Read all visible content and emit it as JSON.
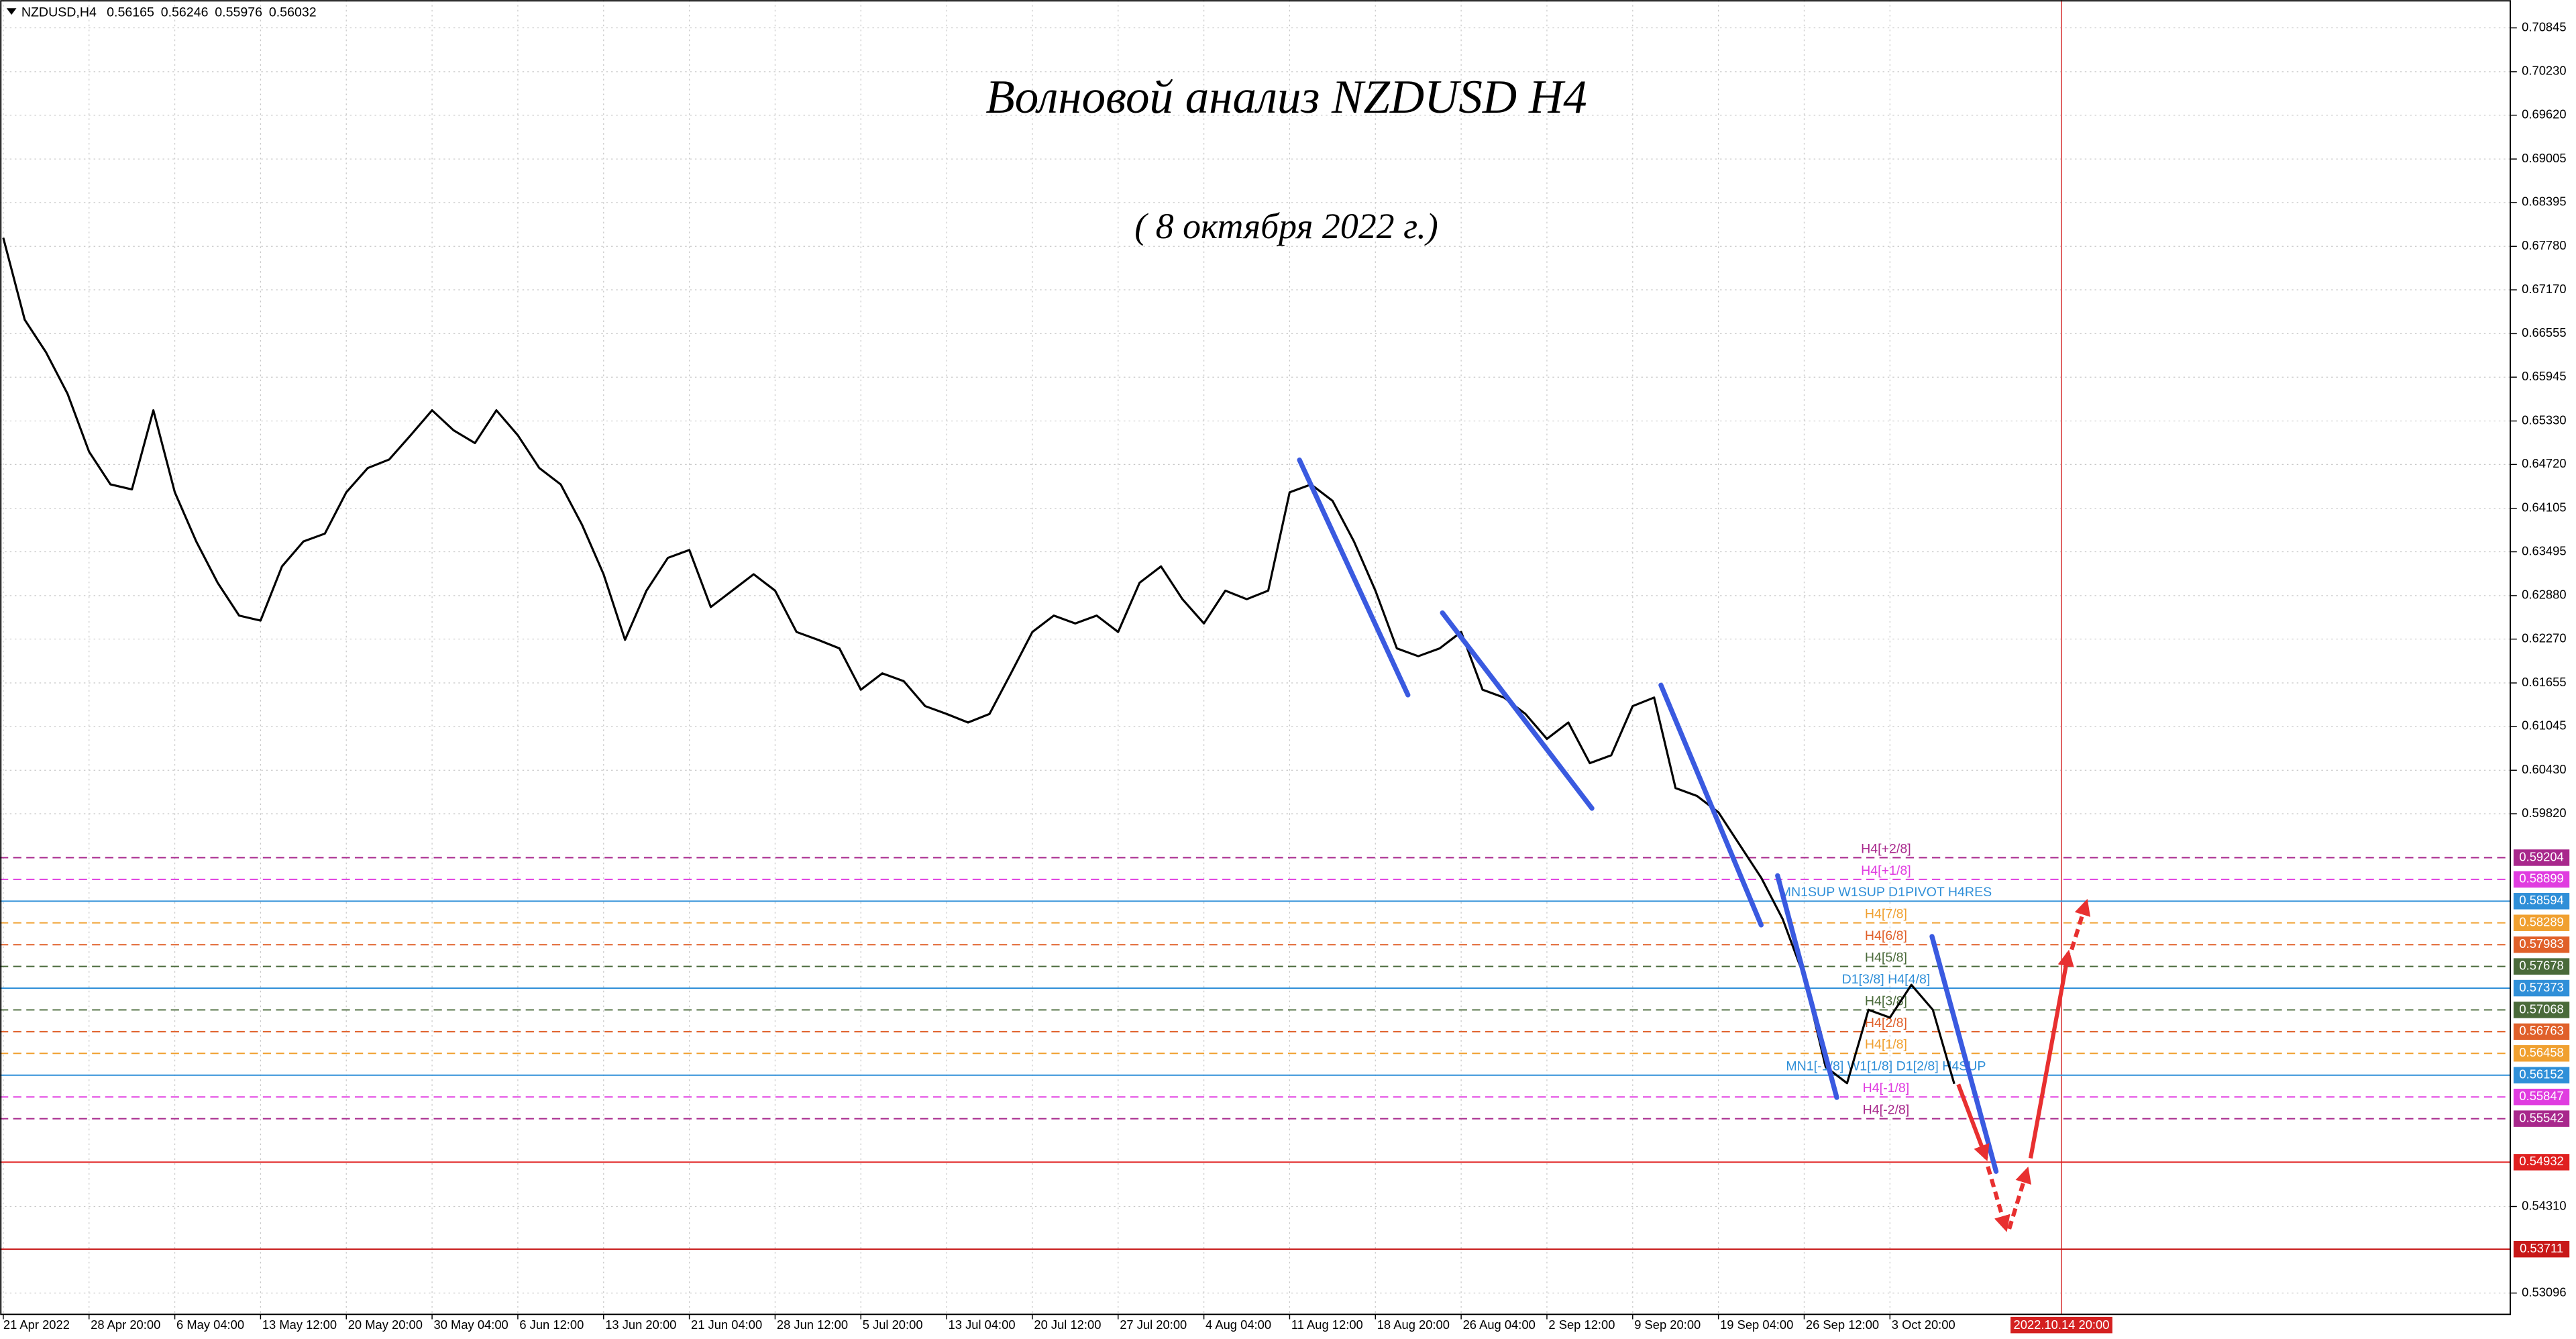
{
  "chart_data": {
    "type": "line",
    "title": "Волновой анализ NZDUSD H4",
    "subtitle": "( 8 октября 2022 г.)",
    "header": {
      "symbol": "NZDUSD,H4",
      "prices": [
        0.56165,
        0.56246,
        0.55976,
        0.56032
      ]
    },
    "categories": [
      "21 Apr 2022",
      null,
      null,
      null,
      "28 Apr 20:00",
      null,
      null,
      null,
      "6 May 04:00",
      null,
      null,
      null,
      "13 May 12:00",
      null,
      null,
      null,
      "20 May 20:00",
      null,
      null,
      null,
      "30 May 04:00",
      null,
      null,
      null,
      "6 Jun 12:00",
      null,
      null,
      null,
      "13 Jun 20:00",
      null,
      null,
      null,
      "21 Jun 04:00",
      null,
      null,
      null,
      "28 Jun 12:00",
      null,
      null,
      null,
      "5 Jul 20:00",
      null,
      null,
      null,
      "13 Jul 04:00",
      null,
      null,
      null,
      "20 Jul 12:00",
      null,
      null,
      null,
      "27 Jul 20:00",
      null,
      null,
      null,
      "4 Aug 04:00",
      null,
      null,
      null,
      "11 Aug 12:00",
      null,
      null,
      null,
      "18 Aug 20:00",
      null,
      null,
      null,
      "26 Aug 04:00",
      null,
      null,
      null,
      "2 Sep 12:00",
      null,
      null,
      null,
      "9 Sep 20:00",
      null,
      null,
      null,
      "19 Sep 04:00",
      null,
      null,
      null,
      "26 Sep 12:00",
      null,
      null,
      null,
      "3 Oct 20:00",
      null,
      null,
      null,
      null,
      null,
      null,
      null,
      "2022.10.14 20:00",
      null,
      null,
      null,
      null,
      null,
      null,
      null,
      null,
      null,
      null,
      null,
      null,
      null,
      null,
      null,
      null,
      null,
      null,
      null,
      null
    ],
    "series": [
      {
        "name": "NZDUSD",
        "color": "#000000",
        "values": [
          0.679,
          0.6675,
          0.6629,
          0.6571,
          0.649,
          0.6444,
          0.6437,
          0.6548,
          0.6433,
          0.6364,
          0.6306,
          0.626,
          0.6253,
          0.6329,
          0.6364,
          0.6375,
          0.6433,
          0.6467,
          0.6479,
          0.6513,
          0.6548,
          0.652,
          0.6502,
          0.6548,
          0.6513,
          0.6467,
          0.6444,
          0.6387,
          0.6318,
          0.6226,
          0.6295,
          0.6341,
          0.6352,
          0.6272,
          0.6295,
          0.6318,
          0.6295,
          0.6237,
          0.6226,
          0.6214,
          0.6156,
          0.6179,
          0.6168,
          0.6133,
          0.6122,
          0.611,
          0.6122,
          0.6179,
          0.6237,
          0.626,
          0.6249,
          0.626,
          0.6237,
          0.6306,
          0.6329,
          0.6283,
          0.6249,
          0.6295,
          0.6283,
          0.6295,
          0.6433,
          0.6444,
          0.6421,
          0.6364,
          0.6295,
          0.6214,
          0.6203,
          0.6214,
          0.6237,
          0.6156,
          0.6145,
          0.6122,
          0.6087,
          0.611,
          0.6053,
          0.6064,
          0.6133,
          0.6145,
          0.6018,
          0.6007,
          0.5984,
          0.5938,
          0.5892,
          0.5834,
          0.5753,
          0.5627,
          0.5604,
          0.5707,
          0.5696,
          0.5742,
          0.5707,
          0.5603,
          null,
          null,
          null,
          null,
          null,
          null,
          null,
          null,
          null,
          null,
          null,
          null,
          null,
          null,
          null,
          null,
          null,
          null,
          null,
          null,
          null,
          null,
          null,
          null,
          null
        ]
      }
    ],
    "ylim": [
      0.52797,
      0.71236
    ],
    "yticks": [
      0.70845,
      {
        "value": 0.7023,
        "label": "0.70230"
      },
      {
        "value": 0.6962,
        "label": "0.69620"
      },
      0.69005,
      0.68395,
      {
        "value": 0.6778,
        "label": "0.67780"
      },
      {
        "value": 0.6717,
        "label": "0.67170"
      },
      0.66555,
      0.65945,
      {
        "value": 0.6533,
        "label": "0.65330"
      },
      {
        "value": 0.6472,
        "label": "0.64720"
      },
      0.64105,
      0.63495,
      {
        "value": 0.6288,
        "label": "0.62880"
      },
      {
        "value": 0.6227,
        "label": "0.62270"
      },
      0.61655,
      0.61045,
      {
        "value": 0.6043,
        "label": "0.60430"
      },
      {
        "value": 0.5982,
        "label": "0.59820"
      },
      {
        "value": 0.5431,
        "label": "0.54310"
      },
      0.53096
    ],
    "grid": true,
    "levels": [
      {
        "value": 0.59204,
        "label": "H4[+2/8]",
        "color": "#a8288c",
        "style": "dashed"
      },
      {
        "value": 0.58899,
        "label": "H4[+1/8]",
        "color": "#e03ce0",
        "style": "dashed"
      },
      {
        "value": 0.58594,
        "label": "MN1SUP W1SUP D1PIVOT H4RES",
        "color": "#2f8fd8",
        "style": "solid"
      },
      {
        "value": 0.58289,
        "label": "H4[7/8]",
        "color": "#f0a030",
        "style": "dashed"
      },
      {
        "value": 0.57983,
        "label": "H4[6/8]",
        "color": "#e0602a",
        "style": "dashed"
      },
      {
        "value": 0.57678,
        "label": "H4[5/8]",
        "color": "#4a6a3a",
        "style": "dashed"
      },
      {
        "value": 0.57373,
        "label": "D1[3/8] H4[4/8]",
        "color": "#2f8fd8",
        "style": "solid"
      },
      {
        "value": 0.57068,
        "label": "H4[3/8]",
        "color": "#4a6a3a",
        "style": "dashed"
      },
      {
        "value": 0.56763,
        "label": "H4[2/8]",
        "color": "#e0602a",
        "style": "dashed"
      },
      {
        "value": 0.56458,
        "label": "H4[1/8]",
        "color": "#f0a030",
        "style": "dashed"
      },
      {
        "value": 0.56152,
        "label": "MN1[-1/8] W1[1/8] D1[2/8] H4SUP",
        "color": "#2f8fd8",
        "style": "solid"
      },
      {
        "value": 0.55847,
        "label": "H4[-1/8]",
        "color": "#e03ce0",
        "style": "dashed"
      },
      {
        "value": 0.55542,
        "label": "H4[-2/8]",
        "color": "#a8288c",
        "style": "dashed"
      },
      {
        "value": 0.54932,
        "color": "#e02020",
        "style": "solid"
      },
      {
        "value": 0.53711,
        "color": "#c81818",
        "style": "solid"
      }
    ]
  }
}
